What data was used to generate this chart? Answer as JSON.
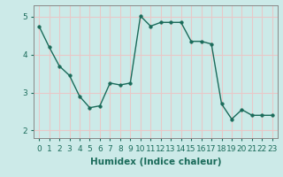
{
  "x": [
    0,
    1,
    2,
    3,
    4,
    5,
    6,
    7,
    8,
    9,
    10,
    11,
    12,
    13,
    14,
    15,
    16,
    17,
    18,
    19,
    20,
    21,
    22,
    23
  ],
  "y": [
    4.75,
    4.2,
    3.7,
    3.45,
    2.9,
    2.6,
    2.65,
    3.25,
    3.2,
    3.25,
    5.02,
    4.75,
    4.85,
    4.85,
    4.85,
    4.35,
    4.35,
    4.28,
    2.7,
    2.3,
    2.55,
    2.4,
    2.4,
    2.4
  ],
  "line_color": "#1a6b5a",
  "marker": "o",
  "markersize": 2.5,
  "linewidth": 1.0,
  "xlabel": "Humidex (Indice chaleur)",
  "xlabel_fontsize": 7.5,
  "xlim": [
    -0.5,
    23.5
  ],
  "ylim": [
    1.8,
    5.3
  ],
  "yticks": [
    2,
    3,
    4,
    5
  ],
  "xtick_labels": [
    "0",
    "1",
    "2",
    "3",
    "4",
    "5",
    "6",
    "7",
    "8",
    "9",
    "10",
    "11",
    "12",
    "13",
    "14",
    "15",
    "16",
    "17",
    "18",
    "19",
    "20",
    "21",
    "22",
    "23"
  ],
  "background_color": "#cceae8",
  "grid_color": "#e8c8c8",
  "tick_fontsize": 6.5,
  "spine_color": "#888888"
}
